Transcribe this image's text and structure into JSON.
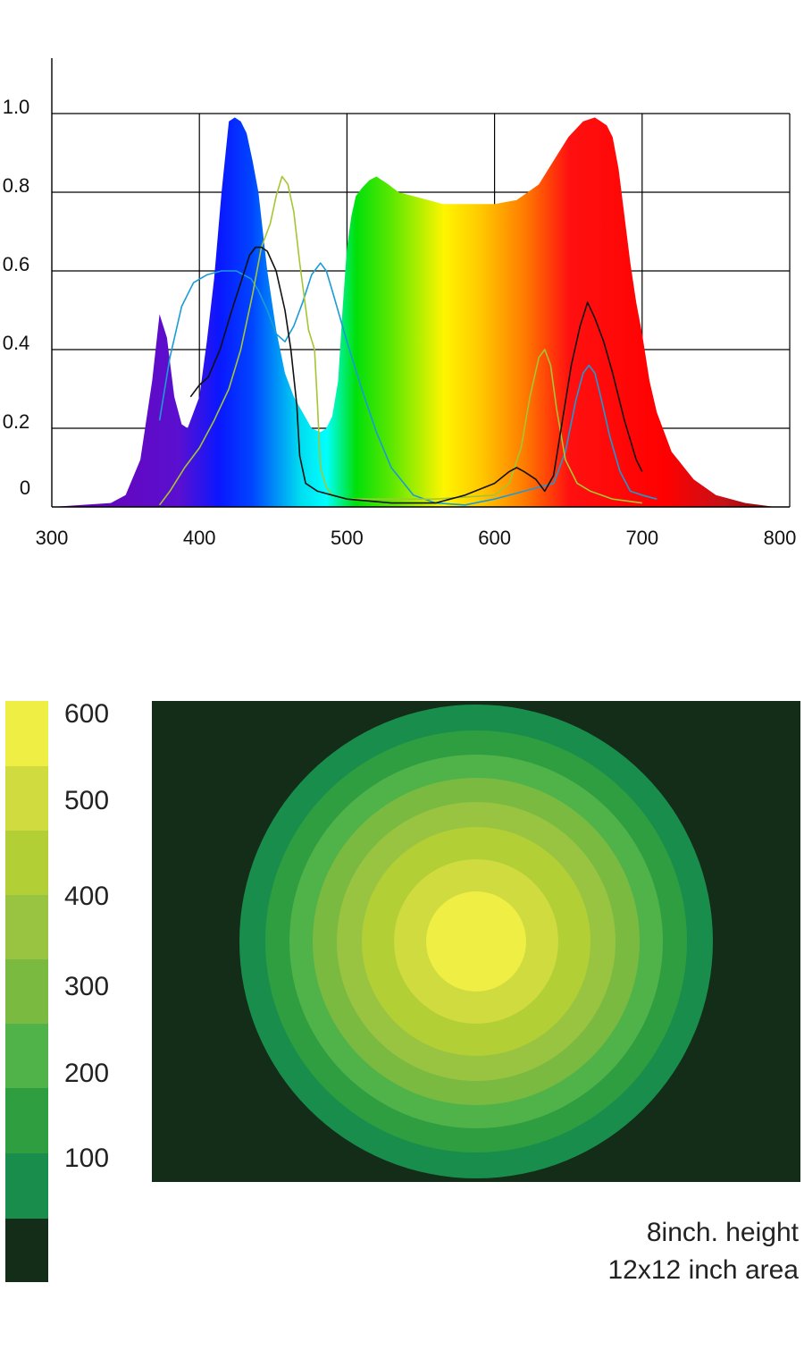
{
  "chart_data": [
    {
      "type": "area",
      "xlim": [
        300,
        800
      ],
      "ylim": [
        0,
        1.0
      ],
      "grid": true,
      "x_ticks": [
        "300",
        "400",
        "500",
        "600",
        "700",
        "800"
      ],
      "y_ticks": [
        "0",
        "0.2",
        "0.4",
        "0.6",
        "0.8",
        "1.0"
      ],
      "series": [
        {
          "role": "spectrum-fill",
          "color": "gradient-rainbow",
          "x": [
            300,
            340,
            350,
            360,
            368,
            373,
            378,
            383,
            388,
            392,
            396,
            400,
            405,
            410,
            415,
            420,
            424,
            428,
            432,
            436,
            440,
            446,
            452,
            458,
            464,
            470,
            476,
            482,
            486,
            490,
            494,
            497,
            500,
            503,
            506,
            510,
            515,
            520,
            528,
            535,
            545,
            555,
            565,
            580,
            600,
            615,
            630,
            640,
            650,
            660,
            668,
            672,
            676,
            680,
            684,
            688,
            692,
            696,
            700,
            705,
            710,
            720,
            735,
            750,
            770,
            790,
            800
          ],
          "y": [
            0,
            0.01,
            0.03,
            0.12,
            0.32,
            0.49,
            0.43,
            0.28,
            0.21,
            0.2,
            0.24,
            0.28,
            0.42,
            0.58,
            0.8,
            0.98,
            0.99,
            0.98,
            0.95,
            0.88,
            0.8,
            0.6,
            0.45,
            0.34,
            0.28,
            0.24,
            0.2,
            0.19,
            0.2,
            0.23,
            0.32,
            0.5,
            0.66,
            0.74,
            0.79,
            0.81,
            0.83,
            0.84,
            0.82,
            0.8,
            0.79,
            0.78,
            0.77,
            0.77,
            0.77,
            0.78,
            0.82,
            0.88,
            0.94,
            0.98,
            0.99,
            0.98,
            0.97,
            0.94,
            0.86,
            0.74,
            0.62,
            0.52,
            0.44,
            0.32,
            0.24,
            0.14,
            0.07,
            0.03,
            0.01,
            0.0,
            0.0
          ]
        },
        {
          "role": "line",
          "color": "#1a9bd7",
          "x": [
            373,
            380,
            388,
            396,
            405,
            415,
            425,
            435,
            440,
            446,
            452,
            458,
            464,
            470,
            476,
            482,
            486,
            490,
            500,
            510,
            520,
            530,
            545,
            560,
            580,
            600,
            620,
            640,
            648,
            655,
            660,
            664,
            668,
            672,
            678,
            685,
            692,
            700,
            710
          ],
          "y": [
            0.22,
            0.38,
            0.51,
            0.57,
            0.59,
            0.6,
            0.6,
            0.58,
            0.55,
            0.5,
            0.44,
            0.42,
            0.46,
            0.52,
            0.59,
            0.62,
            0.6,
            0.55,
            0.42,
            0.3,
            0.19,
            0.1,
            0.03,
            0.01,
            0.005,
            0.02,
            0.04,
            0.06,
            0.14,
            0.27,
            0.34,
            0.36,
            0.34,
            0.28,
            0.18,
            0.09,
            0.04,
            0.03,
            0.02
          ]
        },
        {
          "role": "line",
          "color": "#a6c533",
          "x": [
            373,
            380,
            390,
            400,
            410,
            420,
            428,
            436,
            442,
            448,
            452,
            456,
            460,
            464,
            468,
            474,
            478,
            480,
            482,
            486,
            490,
            500,
            520,
            560,
            600,
            610,
            618,
            624,
            630,
            634,
            638,
            642,
            648,
            656,
            665,
            680,
            700
          ],
          "y": [
            0.005,
            0.04,
            0.1,
            0.15,
            0.22,
            0.3,
            0.4,
            0.54,
            0.66,
            0.72,
            0.79,
            0.84,
            0.82,
            0.75,
            0.62,
            0.45,
            0.4,
            0.26,
            0.1,
            0.05,
            0.03,
            0.02,
            0.02,
            0.02,
            0.03,
            0.06,
            0.15,
            0.28,
            0.38,
            0.4,
            0.36,
            0.25,
            0.12,
            0.06,
            0.04,
            0.02,
            0.01
          ]
        },
        {
          "role": "line",
          "color": "#111111",
          "x": [
            394,
            400,
            406,
            414,
            422,
            428,
            434,
            438,
            442,
            446,
            452,
            458,
            462,
            466,
            468,
            472,
            480,
            490,
            500,
            530,
            560,
            580,
            600,
            610,
            615,
            620,
            628,
            634,
            640,
            646,
            652,
            658,
            663,
            668,
            674,
            680,
            688,
            696,
            700
          ],
          "y": [
            0.28,
            0.31,
            0.33,
            0.4,
            0.5,
            0.57,
            0.64,
            0.66,
            0.66,
            0.65,
            0.6,
            0.5,
            0.4,
            0.26,
            0.13,
            0.06,
            0.04,
            0.03,
            0.02,
            0.01,
            0.01,
            0.03,
            0.06,
            0.09,
            0.1,
            0.09,
            0.07,
            0.04,
            0.08,
            0.22,
            0.36,
            0.46,
            0.52,
            0.48,
            0.42,
            0.34,
            0.22,
            0.12,
            0.09
          ]
        }
      ]
    },
    {
      "type": "heatmap",
      "legend": {
        "labels": [
          "600",
          "500",
          "400",
          "300",
          "200",
          "100"
        ],
        "colors": [
          "#eeee44",
          "#cfdb3e",
          "#b2cf35",
          "#98c441",
          "#7aba41",
          "#4fb349",
          "#2f9e40",
          "#198e4c",
          "#132d18"
        ]
      },
      "rings": [
        "#198e4c",
        "#2f9e40",
        "#4fb349",
        "#7aba41",
        "#98c441",
        "#b2cf35",
        "#cfdb3e",
        "#eeee44"
      ],
      "background_color": "#132d18"
    }
  ],
  "caption": {
    "line1": "8inch. height",
    "line2": "12x12 inch area"
  }
}
